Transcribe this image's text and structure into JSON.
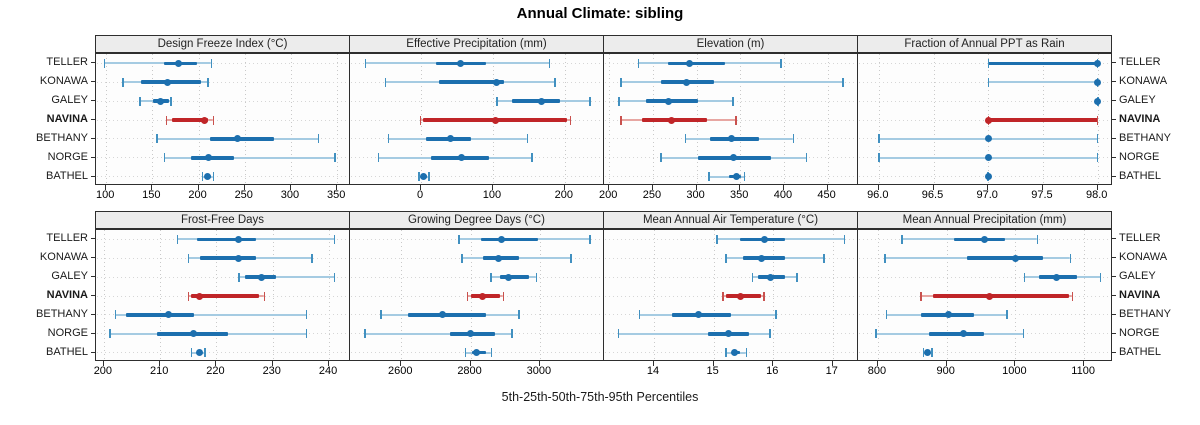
{
  "title": "Annual Climate: sibling",
  "footer": "5th-25th-50th-75th-95th Percentiles",
  "sites": [
    {
      "name": "TELLER",
      "highlight": false
    },
    {
      "name": "KONAWA",
      "highlight": false
    },
    {
      "name": "GALEY",
      "highlight": false
    },
    {
      "name": "NAVINA",
      "highlight": true
    },
    {
      "name": "BETHANY",
      "highlight": false
    },
    {
      "name": "NORGE",
      "highlight": false
    },
    {
      "name": "BATHEL",
      "highlight": false
    }
  ],
  "colors": {
    "blue_dark": "#1c6fae",
    "blue_light": "#a5cbe2",
    "blue_cap": "#4190c0",
    "red_dark": "#c02528",
    "red_light": "#e7a6a2",
    "red_cap": "#c9514e",
    "header_bg": "#ececec",
    "border": "#2e2e2e",
    "grid": "#cfcfcf"
  },
  "percentile_labels": [
    "5th",
    "25th",
    "50th",
    "75th",
    "95th"
  ],
  "chart_data": [
    {
      "type": "percentile-dotplot",
      "title": "Design Freeze Index (°C)",
      "domain": [
        89,
        365
      ],
      "tick_values": [
        100,
        150,
        200,
        250,
        300,
        350
      ],
      "tick_labels": [
        "100",
        "150",
        "200",
        "250",
        "300",
        "350"
      ],
      "values": [
        [
          98,
          163,
          178,
          198,
          214
        ],
        [
          118,
          138,
          166,
          203,
          210
        ],
        [
          136,
          151,
          159,
          168,
          170
        ],
        [
          165,
          171,
          206,
          210,
          216
        ],
        [
          155,
          212,
          242,
          282,
          330
        ],
        [
          163,
          192,
          211,
          238,
          348
        ],
        [
          204,
          207,
          210,
          213,
          216
        ]
      ]
    },
    {
      "type": "percentile-dotplot",
      "title": "Effective Precipitation (mm)",
      "domain": [
        -99,
        256
      ],
      "tick_values": [
        0,
        100,
        200
      ],
      "tick_labels": [
        "0",
        "100",
        "200"
      ],
      "values": [
        [
          -78,
          21,
          55,
          91,
          179
        ],
        [
          -50,
          25,
          105,
          115,
          186
        ],
        [
          105,
          126,
          168,
          193,
          235
        ],
        [
          -1,
          3,
          104,
          203,
          208
        ],
        [
          -46,
          7,
          41,
          70,
          148
        ],
        [
          -60,
          14,
          56,
          95,
          154
        ],
        [
          -3,
          1,
          4,
          8,
          11
        ]
      ]
    },
    {
      "type": "percentile-dotplot",
      "title": "Elevation (m)",
      "domain": [
        194,
        486
      ],
      "tick_values": [
        200,
        250,
        300,
        350,
        400,
        450
      ],
      "tick_labels": [
        "200",
        "250",
        "300",
        "350",
        "400",
        "450"
      ],
      "values": [
        [
          233,
          267,
          292,
          332,
          397
        ],
        [
          213,
          259,
          289,
          320,
          468
        ],
        [
          211,
          242,
          268,
          302,
          342
        ],
        [
          213,
          237,
          271,
          312,
          345
        ],
        [
          287,
          315,
          340,
          372,
          411
        ],
        [
          259,
          302,
          342,
          385,
          426
        ],
        [
          314,
          337,
          346,
          351,
          355
        ]
      ]
    },
    {
      "type": "percentile-dotplot",
      "title": "Fraction of Annual PPT as Rain",
      "domain": [
        95.81,
        98.14
      ],
      "tick_values": [
        96.0,
        96.5,
        97.0,
        97.5,
        98.0
      ],
      "tick_labels": [
        "96.0",
        "96.5",
        "97.0",
        "97.5",
        "98.0"
      ],
      "values": [
        [
          97,
          97,
          98,
          98,
          98
        ],
        [
          97,
          98,
          98,
          98,
          98
        ],
        [
          98,
          98,
          98,
          98,
          98
        ],
        [
          97,
          97,
          97,
          98,
          98
        ],
        [
          96,
          97,
          97,
          97,
          98
        ],
        [
          96,
          97,
          97,
          97,
          98
        ],
        [
          97,
          97,
          97,
          97,
          97
        ]
      ]
    },
    {
      "type": "percentile-dotplot",
      "title": "Frost-Free Days",
      "domain": [
        198.6,
        243.9
      ],
      "tick_values": [
        200,
        210,
        220,
        230,
        240
      ],
      "tick_labels": [
        "200",
        "210",
        "220",
        "230",
        "240"
      ],
      "values": [
        [
          213,
          216.5,
          224,
          227,
          241
        ],
        [
          215,
          217,
          224,
          227,
          237
        ],
        [
          224,
          225,
          228,
          230.5,
          241
        ],
        [
          215,
          215.5,
          217,
          227.5,
          228.5
        ],
        [
          202,
          204,
          211.5,
          216,
          236
        ],
        [
          201,
          209.5,
          216,
          222,
          236
        ],
        [
          215.5,
          216.5,
          217,
          217.5,
          218
        ]
      ]
    },
    {
      "type": "percentile-dotplot",
      "title": "Growing Degree Days (°C)",
      "domain": [
        2452,
        3188
      ],
      "tick_values": [
        2600,
        2800,
        3000
      ],
      "tick_labels": [
        "2600",
        "2800",
        "3000"
      ],
      "values": [
        [
          2765,
          2830,
          2890,
          2995,
          3145
        ],
        [
          2775,
          2835,
          2880,
          2940,
          3090
        ],
        [
          2858,
          2885,
          2910,
          2970,
          2990
        ],
        [
          2790,
          2800,
          2835,
          2885,
          2895
        ],
        [
          2540,
          2620,
          2720,
          2845,
          2940
        ],
        [
          2495,
          2740,
          2800,
          2870,
          2920
        ],
        [
          2785,
          2805,
          2818,
          2845,
          2860
        ]
      ]
    },
    {
      "type": "percentile-dotplot",
      "title": "Mean Annual Air Temperature (°C)",
      "domain": [
        13.16,
        17.44
      ],
      "tick_values": [
        14,
        15,
        16,
        17
      ],
      "tick_labels": [
        "14",
        "15",
        "16",
        "17"
      ],
      "values": [
        [
          15.05,
          15.45,
          15.85,
          16.2,
          17.2
        ],
        [
          15.2,
          15.5,
          15.8,
          16.2,
          16.85
        ],
        [
          15.65,
          15.75,
          15.95,
          16.2,
          16.4
        ],
        [
          15.15,
          15.2,
          15.45,
          15.8,
          15.85
        ],
        [
          13.75,
          14.3,
          14.75,
          15.3,
          16.05
        ],
        [
          13.4,
          14.9,
          15.25,
          15.6,
          15.95
        ],
        [
          15.2,
          15.3,
          15.35,
          15.45,
          15.55
        ]
      ]
    },
    {
      "type": "percentile-dotplot",
      "title": "Mean Annual Precipitation (mm)",
      "domain": [
        771,
        1142
      ],
      "tick_values": [
        800,
        900,
        1000,
        1100
      ],
      "tick_labels": [
        "800",
        "900",
        "1000",
        "1100"
      ],
      "values": [
        [
          835,
          910,
          955,
          985,
          1032
        ],
        [
          810,
          930,
          1000,
          1040,
          1080
        ],
        [
          1013,
          1035,
          1060,
          1090,
          1124
        ],
        [
          862,
          880,
          963,
          1078,
          1083
        ],
        [
          812,
          863,
          902,
          940,
          988
        ],
        [
          797,
          875,
          925,
          955,
          1012
        ],
        [
          866,
          870,
          872,
          876,
          879
        ]
      ]
    }
  ]
}
